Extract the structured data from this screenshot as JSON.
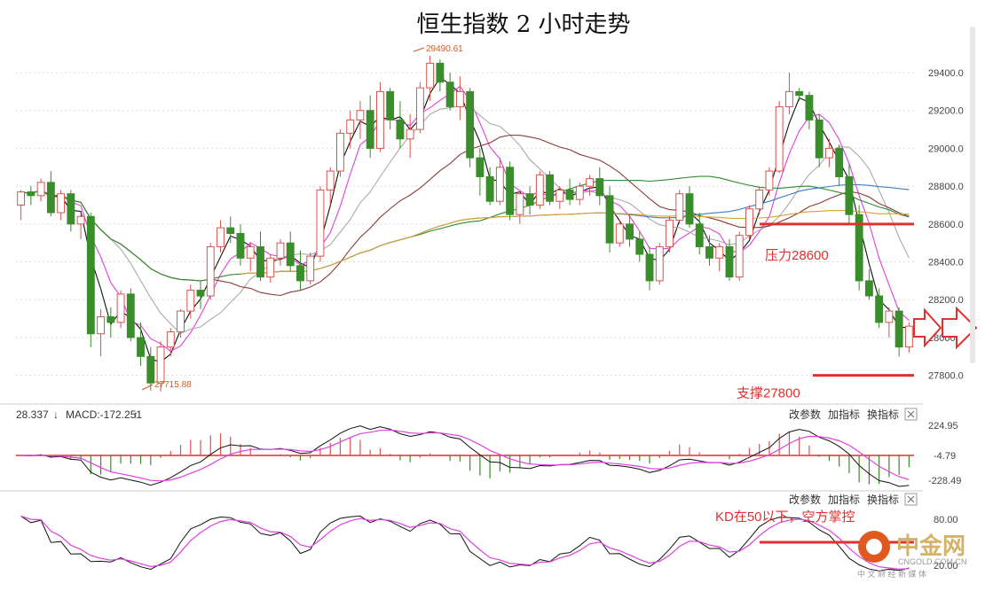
{
  "chart_data": [
    {
      "type": "candlestick",
      "title": "恒生指数 2 小时走势",
      "y_ticks": [
        "29400.0",
        "29200.0",
        "29000.0",
        "28800.0",
        "28600.0",
        "28400.0",
        "28200.0",
        "28000.0",
        "27800.0"
      ],
      "ylim": [
        27700,
        29550
      ],
      "high_label": "29490.61",
      "low_label": "27715.88",
      "annotations": {
        "resistance": {
          "text": "压力28600",
          "value": 28600
        },
        "support": {
          "text": "支撑27800",
          "value": 27800
        }
      },
      "candles": [
        [
          28700,
          28780,
          28620,
          28770
        ],
        [
          28770,
          28800,
          28700,
          28750
        ],
        [
          28750,
          28840,
          28720,
          28820
        ],
        [
          28820,
          28880,
          28640,
          28660
        ],
        [
          28660,
          28780,
          28620,
          28760
        ],
        [
          28760,
          28780,
          28560,
          28600
        ],
        [
          28600,
          28660,
          28520,
          28640
        ],
        [
          28640,
          28660,
          27950,
          28020
        ],
        [
          28020,
          28150,
          27900,
          28110
        ],
        [
          28110,
          28160,
          28000,
          28080
        ],
        [
          28080,
          28250,
          28050,
          28230
        ],
        [
          28230,
          28260,
          27980,
          28000
        ],
        [
          28000,
          28080,
          27850,
          27900
        ],
        [
          27900,
          27950,
          27720,
          27760
        ],
        [
          27760,
          27980,
          27715,
          27950
        ],
        [
          27950,
          28050,
          27900,
          28030
        ],
        [
          28030,
          28150,
          28000,
          28140
        ],
        [
          28140,
          28280,
          28100,
          28250
        ],
        [
          28250,
          28300,
          28150,
          28220
        ],
        [
          28220,
          28500,
          28200,
          28480
        ],
        [
          28480,
          28620,
          28450,
          28580
        ],
        [
          28580,
          28640,
          28500,
          28550
        ],
        [
          28550,
          28600,
          28380,
          28420
        ],
        [
          28420,
          28500,
          28350,
          28480
        ],
        [
          28480,
          28560,
          28300,
          28320
        ],
        [
          28320,
          28440,
          28290,
          28420
        ],
        [
          28420,
          28520,
          28380,
          28500
        ],
        [
          28500,
          28560,
          28350,
          28380
        ],
        [
          28380,
          28460,
          28250,
          28300
        ],
        [
          28300,
          28450,
          28280,
          28430
        ],
        [
          28430,
          28800,
          28400,
          28780
        ],
        [
          28780,
          28900,
          28700,
          28880
        ],
        [
          28880,
          29100,
          28850,
          29080
        ],
        [
          29080,
          29200,
          29000,
          29150
        ],
        [
          29150,
          29250,
          29050,
          29200
        ],
        [
          29200,
          29280,
          28950,
          29000
        ],
        [
          29000,
          29350,
          28980,
          29300
        ],
        [
          29300,
          29320,
          29100,
          29150
        ],
        [
          29150,
          29250,
          29000,
          29050
        ],
        [
          29050,
          29180,
          28950,
          29100
        ],
        [
          29100,
          29350,
          29080,
          29320
        ],
        [
          29320,
          29490,
          29250,
          29450
        ],
        [
          29450,
          29470,
          29300,
          29350
        ],
        [
          29350,
          29400,
          29200,
          29220
        ],
        [
          29220,
          29380,
          29150,
          29300
        ],
        [
          29300,
          29320,
          28900,
          28950
        ],
        [
          28950,
          29000,
          28750,
          28850
        ],
        [
          28850,
          28900,
          28700,
          28720
        ],
        [
          28720,
          28950,
          28700,
          28900
        ],
        [
          28900,
          28930,
          28620,
          28650
        ],
        [
          28650,
          28780,
          28600,
          28760
        ],
        [
          28760,
          28800,
          28650,
          28700
        ],
        [
          28700,
          28880,
          28680,
          28860
        ],
        [
          28860,
          28880,
          28700,
          28720
        ],
        [
          28720,
          28800,
          28680,
          28780
        ],
        [
          28780,
          28840,
          28700,
          28730
        ],
        [
          28730,
          28820,
          28700,
          28800
        ],
        [
          28800,
          28860,
          28750,
          28840
        ],
        [
          28840,
          28900,
          28700,
          28750
        ],
        [
          28750,
          28800,
          28450,
          28500
        ],
        [
          28500,
          28620,
          28480,
          28600
        ],
        [
          28600,
          28650,
          28480,
          28520
        ],
        [
          28520,
          28560,
          28400,
          28440
        ],
        [
          28440,
          28480,
          28250,
          28300
        ],
        [
          28300,
          28500,
          28280,
          28480
        ],
        [
          28480,
          28640,
          28450,
          28620
        ],
        [
          28620,
          28780,
          28600,
          28760
        ],
        [
          28760,
          28800,
          28580,
          28600
        ],
        [
          28600,
          28660,
          28440,
          28480
        ],
        [
          28480,
          28540,
          28380,
          28420
        ],
        [
          28420,
          28500,
          28350,
          28480
        ],
        [
          28480,
          28520,
          28300,
          28320
        ],
        [
          28320,
          28560,
          28300,
          28540
        ],
        [
          28540,
          28700,
          28520,
          28680
        ],
        [
          28680,
          28800,
          28650,
          28780
        ],
        [
          28780,
          28900,
          28750,
          28880
        ],
        [
          28880,
          29250,
          28870,
          29220
        ],
        [
          29220,
          29400,
          29180,
          29300
        ],
        [
          29300,
          29320,
          29250,
          29280
        ],
        [
          29280,
          29300,
          29100,
          29150
        ],
        [
          29150,
          29180,
          28900,
          28950
        ],
        [
          28950,
          29050,
          28900,
          29000
        ],
        [
          29000,
          29020,
          28800,
          28850
        ],
        [
          28850,
          28920,
          28600,
          28650
        ],
        [
          28650,
          28700,
          28250,
          28300
        ],
        [
          28300,
          28360,
          28200,
          28220
        ],
        [
          28220,
          28260,
          28050,
          28080
        ],
        [
          28080,
          28160,
          28000,
          28140
        ],
        [
          28140,
          28160,
          27900,
          27950
        ],
        [
          27950,
          28080,
          27920,
          28060
        ]
      ]
    },
    {
      "type": "macd",
      "legend_value": "28.337",
      "legend_macd": "MACD:-172.251",
      "y_ticks": [
        "224.95",
        "-4.79",
        "-228.49"
      ],
      "buttons": [
        "改参数",
        "加指标",
        "换指标"
      ]
    },
    {
      "type": "kd",
      "y_ticks": [
        "80.00",
        "20.00"
      ],
      "annotation": "KD在50以下，空方掌控",
      "buttons": [
        "改参数",
        "加指标",
        "换指标"
      ]
    }
  ],
  "watermark": {
    "text": "中金网",
    "sub": "CNGOLD.COM.CN",
    "sub2": "中 文 财 经 新 媒 体"
  }
}
